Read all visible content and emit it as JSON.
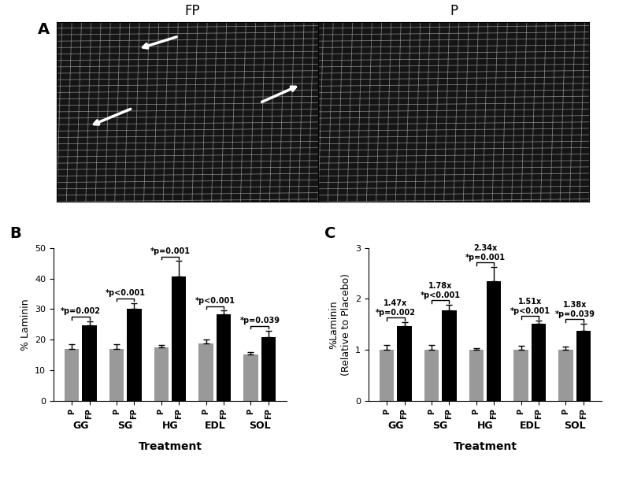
{
  "figure": {
    "panel_labels": [
      "A",
      "B",
      "C"
    ],
    "images": [
      {
        "title": "FP"
      },
      {
        "title": "P"
      }
    ]
  },
  "chart_data": [
    {
      "type": "bar",
      "categories": [
        "GG",
        "SG",
        "HG",
        "EDL",
        "SOL"
      ],
      "series": [
        {
          "name": "P",
          "color": "#999999",
          "values": [
            17.0,
            17.0,
            17.5,
            18.7,
            15.2
          ],
          "errors": [
            1.5,
            1.6,
            0.8,
            1.5,
            0.8
          ]
        },
        {
          "name": "FP",
          "color": "#000000",
          "values": [
            24.8,
            30.0,
            40.7,
            28.2,
            20.8
          ],
          "errors": [
            1.2,
            2.0,
            5.0,
            1.3,
            2.2
          ]
        }
      ],
      "xlabel": "Treatment",
      "ylabel": "% Laminin",
      "ylim": [
        0,
        50
      ],
      "yticks": [
        0,
        10,
        20,
        30,
        40,
        50
      ],
      "annotations": [
        [
          "*p=0.002"
        ],
        [
          "*p<0.001"
        ],
        [
          "*p=0.001"
        ],
        [
          "*p<0.001"
        ],
        [
          "*p=0.039"
        ]
      ]
    },
    {
      "type": "bar",
      "categories": [
        "GG",
        "SG",
        "HG",
        "EDL",
        "SOL"
      ],
      "series": [
        {
          "name": "P",
          "color": "#999999",
          "values": [
            1.0,
            1.0,
            1.0,
            1.0,
            1.0
          ],
          "errors": [
            0.09,
            0.1,
            0.04,
            0.08,
            0.06
          ]
        },
        {
          "name": "FP",
          "color": "#000000",
          "values": [
            1.47,
            1.78,
            2.34,
            1.51,
            1.38
          ],
          "errors": [
            0.07,
            0.1,
            0.28,
            0.06,
            0.13
          ]
        }
      ],
      "xlabel": "Treatment",
      "ylabel": "%Laminin\n(Relative to Placebo)",
      "ylim": [
        0,
        3
      ],
      "yticks": [
        0,
        1,
        2,
        3
      ],
      "annotations": [
        [
          "1.47x",
          "*p=0.002"
        ],
        [
          "1.78x",
          "*p<0.001"
        ],
        [
          "2.34x",
          "*p=0.001"
        ],
        [
          "1.51x",
          "*p<0.001"
        ],
        [
          "1.38x",
          "*p=0.039"
        ]
      ]
    }
  ]
}
